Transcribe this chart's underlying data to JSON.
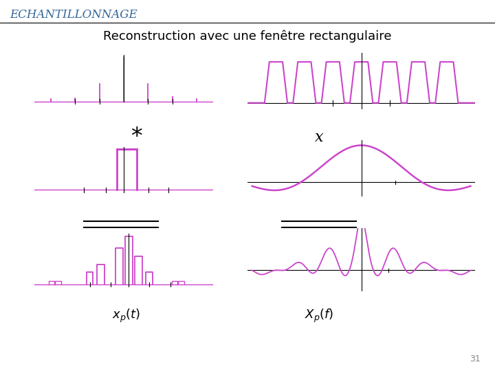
{
  "title": "ECHANTILLONNAGE",
  "subtitle": "Reconstruction avec une fenêtre rectangulaire",
  "left_label": "$x_p(t)$",
  "right_label": "$X_p(f)$",
  "star_label": "*",
  "cross_label": "x",
  "page_number": "31",
  "pink_color": "#CC44CC",
  "axis_color": "#000000",
  "title_color": "#336699",
  "bg_color": "#ffffff"
}
